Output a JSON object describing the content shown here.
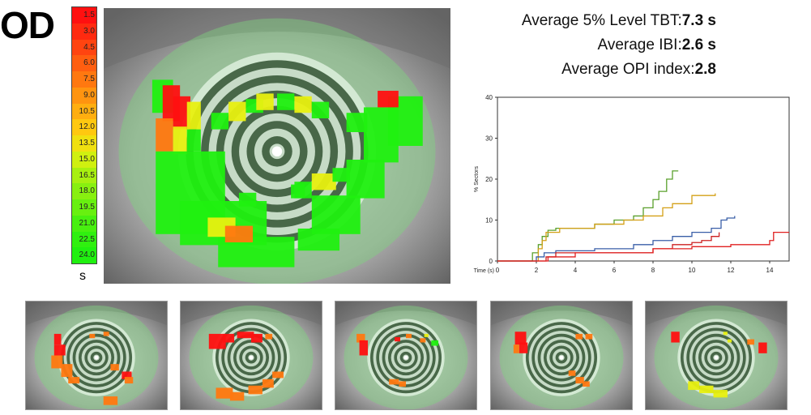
{
  "eye_label": "OD",
  "scale": {
    "ticks": [
      "1.5",
      "3.0",
      "4.5",
      "6.0",
      "7.5",
      "9.0",
      "10.5",
      "12.0",
      "13.5",
      "15.0",
      "16.5",
      "18.0",
      "19.5",
      "21.0",
      "22.5",
      "24.0"
    ],
    "colors": [
      "#ff1010",
      "#ff2a10",
      "#ff4410",
      "#ff5e10",
      "#ff7810",
      "#ff9410",
      "#ffae10",
      "#ffc810",
      "#f0e010",
      "#d0f010",
      "#a8f010",
      "#88f010",
      "#68f010",
      "#48f010",
      "#30f010",
      "#20f010"
    ],
    "unit": "s"
  },
  "stats": {
    "tbt_label": "Average 5% Level TBT:",
    "tbt_value": "7.3 s",
    "ibi_label": "Average IBI:",
    "ibi_value": "2.6 s",
    "opi_label": "Average OPI index:",
    "opi_value": "2.8"
  },
  "chart_data": {
    "type": "line",
    "xlabel": "Time (s)",
    "ylabel": "% Sectors",
    "xlim": [
      0,
      15
    ],
    "ylim": [
      0,
      40
    ],
    "xticks": [
      0,
      2,
      4,
      6,
      8,
      10,
      12,
      14
    ],
    "yticks": [
      0,
      10,
      20,
      30,
      40
    ],
    "grid": false,
    "series": [
      {
        "color": "#5aa02c",
        "points": [
          [
            0,
            0
          ],
          [
            1.7,
            0
          ],
          [
            1.8,
            2
          ],
          [
            2.1,
            4
          ],
          [
            2.3,
            6
          ],
          [
            2.6,
            7.5
          ],
          [
            3,
            8
          ],
          [
            4.5,
            8
          ],
          [
            5,
            9
          ],
          [
            6,
            10
          ],
          [
            7,
            11
          ],
          [
            7.5,
            13
          ],
          [
            8,
            15
          ],
          [
            8.3,
            17
          ],
          [
            8.7,
            20
          ],
          [
            9,
            22
          ],
          [
            9.3,
            22
          ]
        ]
      },
      {
        "color": "#d4a017",
        "points": [
          [
            0,
            0
          ],
          [
            1.9,
            0
          ],
          [
            2.1,
            3
          ],
          [
            2.3,
            5
          ],
          [
            2.5,
            7
          ],
          [
            3.2,
            8
          ],
          [
            5,
            9
          ],
          [
            6.5,
            10
          ],
          [
            7.5,
            11
          ],
          [
            8.5,
            13
          ],
          [
            9,
            14
          ],
          [
            10,
            16
          ],
          [
            10.8,
            16
          ],
          [
            11.2,
            16.5
          ]
        ]
      },
      {
        "color": "#3a5fa8",
        "points": [
          [
            0,
            0
          ],
          [
            1.9,
            0
          ],
          [
            2,
            1
          ],
          [
            2.4,
            2
          ],
          [
            3,
            2.5
          ],
          [
            5,
            3
          ],
          [
            7,
            4
          ],
          [
            8,
            5
          ],
          [
            9,
            6
          ],
          [
            10,
            7
          ],
          [
            11,
            8
          ],
          [
            11.5,
            10
          ],
          [
            11.8,
            10.5
          ],
          [
            12.2,
            11
          ]
        ]
      },
      {
        "color": "#cc2020",
        "points": [
          [
            0,
            0
          ],
          [
            2,
            0
          ],
          [
            2.5,
            1
          ],
          [
            3,
            2
          ],
          [
            5,
            2
          ],
          [
            8,
            3
          ],
          [
            9,
            4
          ],
          [
            10,
            4.5
          ],
          [
            10.5,
            5
          ],
          [
            11,
            6
          ],
          [
            11.4,
            7
          ]
        ]
      },
      {
        "color": "#e02020",
        "points": [
          [
            0,
            0
          ],
          [
            2.2,
            0
          ],
          [
            2.6,
            1
          ],
          [
            4,
            2
          ],
          [
            6,
            2
          ],
          [
            8,
            3
          ],
          [
            10,
            3.5
          ],
          [
            12,
            4
          ],
          [
            14,
            5
          ],
          [
            14.2,
            7
          ],
          [
            15,
            7
          ]
        ]
      }
    ]
  },
  "colors": {
    "sclera": "#c8c8c8",
    "ring_light": "#ddf0dd",
    "ring_dark": "#3a5a3a",
    "green": "#20f010",
    "yellow": "#e8f010",
    "orange": "#ff7810",
    "red": "#ff1010"
  }
}
